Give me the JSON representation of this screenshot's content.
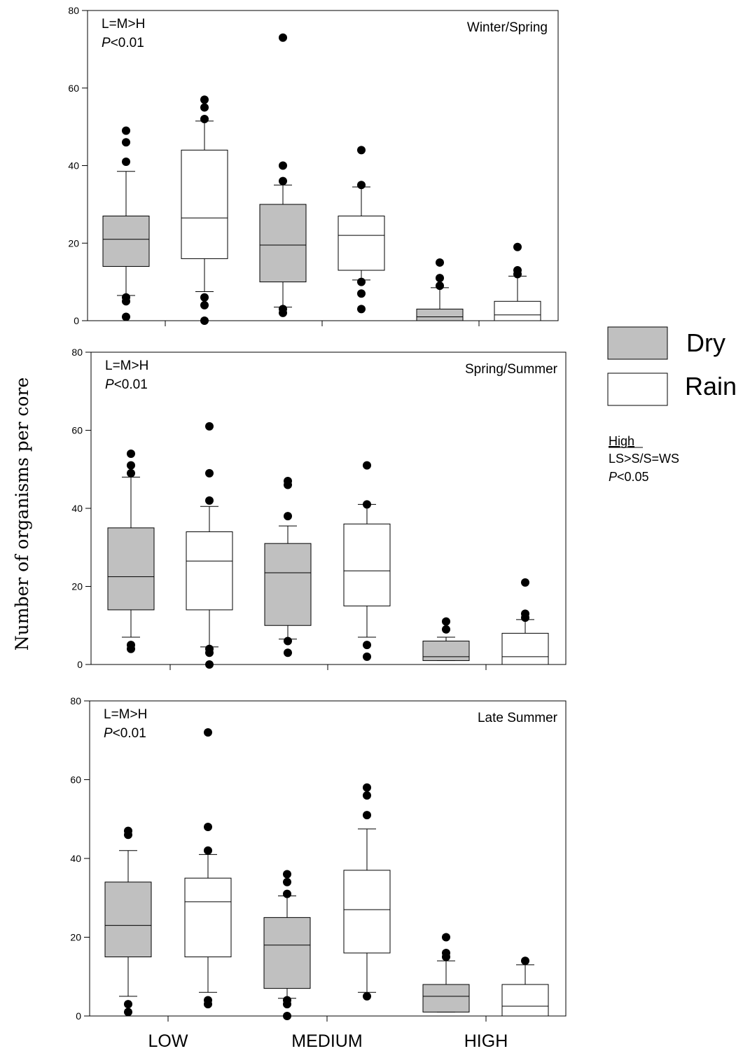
{
  "chart_data": [
    {
      "type": "box",
      "title": "Winter/Spring",
      "annotation_line1": "L=M>H",
      "annotation_p": "P",
      "annotation_p_rest": "<0.01",
      "ylim": [
        0,
        80
      ],
      "yticks": [
        0,
        20,
        40,
        60,
        80
      ],
      "boxes": [
        {
          "group": "Dry",
          "category": "LOW",
          "q1": 14,
          "median": 21,
          "q3": 27,
          "whisker_low": 6.5,
          "whisker_high": 38.5,
          "outliers": [
            49,
            46,
            41,
            6,
            5,
            1
          ]
        },
        {
          "group": "Rain",
          "category": "LOW",
          "q1": 16,
          "median": 26.5,
          "q3": 44,
          "whisker_low": 7.5,
          "whisker_high": 51.5,
          "outliers": [
            57,
            55,
            52,
            6,
            4,
            0
          ]
        },
        {
          "group": "Dry",
          "category": "MEDIUM",
          "q1": 10,
          "median": 19.5,
          "q3": 30,
          "whisker_low": 3.5,
          "whisker_high": 35,
          "outliers": [
            73,
            40,
            36,
            3,
            2
          ]
        },
        {
          "group": "Rain",
          "category": "MEDIUM",
          "q1": 13,
          "median": 22,
          "q3": 27,
          "whisker_low": 10.5,
          "whisker_high": 34.5,
          "outliers": [
            44,
            35,
            10,
            7,
            3
          ]
        },
        {
          "group": "Dry",
          "category": "HIGH",
          "q1": 0,
          "median": 1,
          "q3": 3,
          "whisker_low": 0,
          "whisker_high": 8.5,
          "outliers": [
            15,
            11,
            9
          ]
        },
        {
          "group": "Rain",
          "category": "HIGH",
          "q1": 0,
          "median": 1.5,
          "q3": 5,
          "whisker_low": 0,
          "whisker_high": 11.5,
          "outliers": [
            19,
            13,
            12
          ]
        }
      ]
    },
    {
      "type": "box",
      "title": "Spring/Summer",
      "annotation_line1": "L=M>H",
      "annotation_p": "P",
      "annotation_p_rest": "<0.01",
      "ylim": [
        0,
        80
      ],
      "yticks": [
        0,
        20,
        40,
        60,
        80
      ],
      "boxes": [
        {
          "group": "Dry",
          "category": "LOW",
          "q1": 14,
          "median": 22.5,
          "q3": 35,
          "whisker_low": 7,
          "whisker_high": 48,
          "outliers": [
            54,
            51,
            49,
            5,
            4
          ]
        },
        {
          "group": "Rain",
          "category": "LOW",
          "q1": 14,
          "median": 26.5,
          "q3": 34,
          "whisker_low": 4.5,
          "whisker_high": 40.5,
          "outliers": [
            61,
            49,
            42,
            4,
            3,
            0
          ]
        },
        {
          "group": "Dry",
          "category": "MEDIUM",
          "q1": 10,
          "median": 23.5,
          "q3": 31,
          "whisker_low": 6.5,
          "whisker_high": 35.5,
          "outliers": [
            47,
            46,
            38,
            6,
            3
          ]
        },
        {
          "group": "Rain",
          "category": "MEDIUM",
          "q1": 15,
          "median": 24,
          "q3": 36,
          "whisker_low": 7,
          "whisker_high": 41,
          "outliers": [
            51,
            41,
            5,
            2
          ]
        },
        {
          "group": "Dry",
          "category": "HIGH",
          "q1": 1,
          "median": 2,
          "q3": 6,
          "whisker_low": 1,
          "whisker_high": 7,
          "outliers": [
            11,
            9
          ]
        },
        {
          "group": "Rain",
          "category": "HIGH",
          "q1": 0,
          "median": 2,
          "q3": 8,
          "whisker_low": 0,
          "whisker_high": 11.5,
          "outliers": [
            21,
            13,
            12
          ]
        }
      ]
    },
    {
      "type": "box",
      "title": "Late Summer",
      "annotation_line1": "L=M>H",
      "annotation_p": "P",
      "annotation_p_rest": "<0.01",
      "ylim": [
        0,
        80
      ],
      "yticks": [
        0,
        20,
        40,
        60,
        80
      ],
      "categories": [
        "LOW",
        "MEDIUM",
        "HIGH"
      ],
      "boxes": [
        {
          "group": "Dry",
          "category": "LOW",
          "q1": 15,
          "median": 23,
          "q3": 34,
          "whisker_low": 5,
          "whisker_high": 42,
          "outliers": [
            47,
            46,
            3,
            1
          ]
        },
        {
          "group": "Rain",
          "category": "LOW",
          "q1": 15,
          "median": 29,
          "q3": 35,
          "whisker_low": 6,
          "whisker_high": 41,
          "outliers": [
            72,
            48,
            42,
            4,
            3
          ]
        },
        {
          "group": "Dry",
          "category": "MEDIUM",
          "q1": 7,
          "median": 18,
          "q3": 25,
          "whisker_low": 4.5,
          "whisker_high": 30.5,
          "outliers": [
            36,
            34,
            31,
            4,
            3,
            0
          ]
        },
        {
          "group": "Rain",
          "category": "MEDIUM",
          "q1": 16,
          "median": 27,
          "q3": 37,
          "whisker_low": 6,
          "whisker_high": 47.5,
          "outliers": [
            58,
            56,
            51,
            5
          ]
        },
        {
          "group": "Dry",
          "category": "HIGH",
          "q1": 1,
          "median": 5,
          "q3": 8,
          "whisker_low": 1,
          "whisker_high": 14,
          "outliers": [
            20,
            16,
            15
          ]
        },
        {
          "group": "Rain",
          "category": "HIGH",
          "q1": 0,
          "median": 2.5,
          "q3": 8,
          "whisker_low": 0,
          "whisker_high": 13,
          "outliers": [
            14
          ]
        }
      ]
    }
  ],
  "y_axis_label": "Number of organisms per core",
  "legend": [
    {
      "name": "Dry",
      "color": "#c0c0c0"
    },
    {
      "name": "Rain",
      "color": "#ffffff"
    }
  ],
  "note": {
    "heading": "High",
    "line1": "LS>S/S=WS",
    "p": "P",
    "p_rest": "<0.05"
  },
  "x_categories": [
    "LOW",
    "MEDIUM",
    "HIGH"
  ]
}
